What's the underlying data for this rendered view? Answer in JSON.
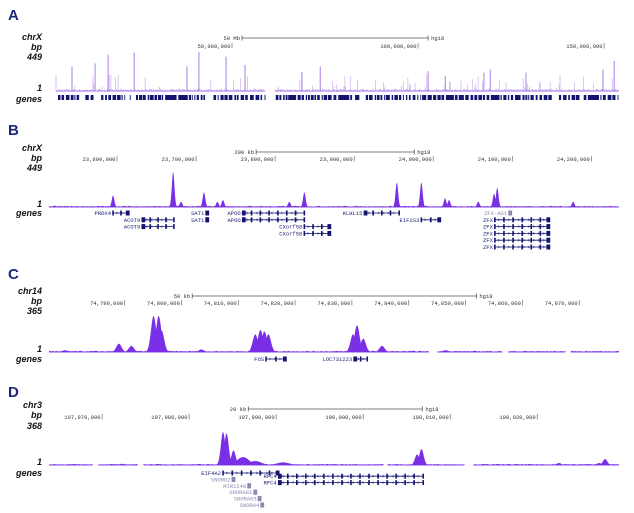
{
  "colors": {
    "signal": "#7a2ee6",
    "signal_light": "#b58be9",
    "baseline": "#9b6cf0",
    "genes": "#14146e",
    "panel_letter": "#1b2878"
  },
  "chart_data": [
    {
      "type": "area",
      "panel": "A",
      "chrom": "chrX",
      "unit": "bp",
      "ymax": "449",
      "ymin": "1",
      "ylim": [
        1,
        449
      ],
      "genes_label": "genes",
      "scale_label": "50 Mb",
      "assembly": "hg18",
      "scale_start": 52700000,
      "scale_span": 50000000,
      "xlim": [
        2700000,
        154000000
      ],
      "ticks": [
        {
          "value": 50000000,
          "label": "50,000,000"
        },
        {
          "value": 100000000,
          "label": "100,000,000"
        },
        {
          "value": 150000000,
          "label": "150,000,000"
        }
      ],
      "gaps": [
        [
          58900000,
          61600000
        ]
      ],
      "peaks": [
        {
          "pos": 7000000,
          "height": 283
        },
        {
          "pos": 13200000,
          "height": 319
        },
        {
          "pos": 16700000,
          "height": 418
        },
        {
          "pos": 23700000,
          "height": 440
        },
        {
          "pos": 37900000,
          "height": 283
        },
        {
          "pos": 41100000,
          "height": 449
        },
        {
          "pos": 48400000,
          "height": 395
        },
        {
          "pos": 53500000,
          "height": 301
        },
        {
          "pos": 68800000,
          "height": 220
        },
        {
          "pos": 73700000,
          "height": 283
        },
        {
          "pos": 102700000,
          "height": 229
        },
        {
          "pos": 107300000,
          "height": 171
        },
        {
          "pos": 117700000,
          "height": 211
        },
        {
          "pos": 119400000,
          "height": 247
        },
        {
          "pos": 129000000,
          "height": 211
        },
        {
          "pos": 149700000,
          "height": 247
        },
        {
          "pos": 152700000,
          "height": 346
        }
      ],
      "genes": []
    },
    {
      "type": "area",
      "panel": "B",
      "chrom": "chrX",
      "unit": "bp",
      "ymax": "449",
      "ymin": "1",
      "ylim": [
        1,
        449
      ],
      "genes_label": "genes",
      "scale_label": "200 kb",
      "assembly": "hg18",
      "scale_start": 23776000,
      "scale_span": 200000,
      "xlim": [
        23514000,
        24235000
      ],
      "ticks": [
        {
          "value": 23600000,
          "label": "23,600,000"
        },
        {
          "value": 23700000,
          "label": "23,700,000"
        },
        {
          "value": 23800000,
          "label": "23,800,000"
        },
        {
          "value": 23900000,
          "label": "23,900,000"
        },
        {
          "value": 24000000,
          "label": "24,000,000"
        },
        {
          "value": 24100000,
          "label": "24,100,000"
        },
        {
          "value": 24200000,
          "label": "24,200,000"
        }
      ],
      "gaps": [],
      "peaks": [
        {
          "pos": 23595000,
          "height": 148
        },
        {
          "pos": 23671000,
          "height": 449
        },
        {
          "pos": 23681000,
          "height": 67
        },
        {
          "pos": 23710000,
          "height": 189
        },
        {
          "pos": 23727000,
          "height": 67
        },
        {
          "pos": 23734000,
          "height": 90
        },
        {
          "pos": 23818000,
          "height": 67
        },
        {
          "pos": 23837000,
          "height": 189
        },
        {
          "pos": 23954000,
          "height": 314
        },
        {
          "pos": 23985000,
          "height": 314
        },
        {
          "pos": 24015000,
          "height": 112
        },
        {
          "pos": 24020000,
          "height": 90
        },
        {
          "pos": 24057000,
          "height": 67
        },
        {
          "pos": 24077000,
          "height": 170
        },
        {
          "pos": 24081000,
          "height": 247
        },
        {
          "pos": 24177000,
          "height": 67
        }
      ],
      "genes": [
        {
          "name": "PRDX4",
          "start": 23595000,
          "end": 23615000,
          "row": 0,
          "strand": "+"
        },
        {
          "name": "ACOT9",
          "start": 23632000,
          "end": 23672000,
          "row": 1,
          "strand": "-"
        },
        {
          "name": "ACOT9",
          "start": 23632000,
          "end": 23672000,
          "row": 2,
          "strand": "-"
        },
        {
          "name": "SAT1",
          "start": 23713000,
          "end": 23715500,
          "row": 0,
          "strand": "+"
        },
        {
          "name": "SAT1",
          "start": 23713000,
          "end": 23715500,
          "row": 1,
          "strand": "+"
        },
        {
          "name": "APOO",
          "start": 23759000,
          "end": 23837000,
          "row": 0,
          "strand": "-"
        },
        {
          "name": "APOO",
          "start": 23759000,
          "end": 23837000,
          "row": 1,
          "strand": "-"
        },
        {
          "name": "CXorf58",
          "start": 23837000,
          "end": 23870000,
          "row": 2,
          "strand": "+"
        },
        {
          "name": "CXorf58",
          "start": 23837000,
          "end": 23870000,
          "row": 3,
          "strand": "+"
        },
        {
          "name": "KLHL15",
          "start": 23913000,
          "end": 23957000,
          "row": 0,
          "strand": "-"
        },
        {
          "name": "EIF2S3",
          "start": 23985000,
          "end": 24009000,
          "row": 1,
          "strand": "+"
        },
        {
          "name": "ZFX-AS1",
          "start": 24096000,
          "end": 24098000,
          "row": 0,
          "strand": "-",
          "grey": true
        },
        {
          "name": "ZFX",
          "start": 24078000,
          "end": 24147000,
          "row": 1,
          "strand": "+"
        },
        {
          "name": "ZFX",
          "start": 24078000,
          "end": 24147000,
          "row": 2,
          "strand": "+"
        },
        {
          "name": "ZFX",
          "start": 24078000,
          "end": 24147000,
          "row": 3,
          "strand": "+"
        },
        {
          "name": "ZFX",
          "start": 24078000,
          "end": 24147000,
          "row": 4,
          "strand": "+"
        },
        {
          "name": "ZFX",
          "start": 24078000,
          "end": 24147000,
          "row": 5,
          "strand": "+"
        }
      ]
    },
    {
      "type": "area",
      "panel": "C",
      "chrom": "chr14",
      "unit": "bp",
      "ymax": "365",
      "ymin": "1",
      "ylim": [
        1,
        365
      ],
      "genes_label": "genes",
      "scale_label": "50 kb",
      "assembly": "hg18",
      "scale_start": 74801900,
      "scale_span": 50000,
      "xlim": [
        74776700,
        74877000
      ],
      "ticks": [
        {
          "value": 74790000,
          "label": "74,790,000"
        },
        {
          "value": 74800000,
          "label": "74,800,000"
        },
        {
          "value": 74810000,
          "label": "74,810,000"
        },
        {
          "value": 74820000,
          "label": "74,820,000"
        },
        {
          "value": 74830000,
          "label": "74,830,000"
        },
        {
          "value": 74840000,
          "label": "74,840,000"
        },
        {
          "value": 74850000,
          "label": "74,850,000"
        },
        {
          "value": 74860000,
          "label": "74,860,000"
        },
        {
          "value": 74870000,
          "label": "74,870,000"
        }
      ],
      "gaps": [
        [
          74843500,
          74845000
        ],
        [
          74856500,
          74857500
        ],
        [
          74867500,
          74868500
        ]
      ],
      "peaks": [
        {
          "pos": 74779500,
          "height": 18
        },
        {
          "pos": 74789000,
          "height": 84
        },
        {
          "pos": 74791200,
          "height": 62
        },
        {
          "pos": 74795100,
          "height": 365
        },
        {
          "pos": 74796000,
          "height": 365
        },
        {
          "pos": 74796500,
          "height": 219
        },
        {
          "pos": 74803500,
          "height": 26
        },
        {
          "pos": 74813000,
          "height": 179
        },
        {
          "pos": 74813900,
          "height": 223
        },
        {
          "pos": 74814600,
          "height": 208
        },
        {
          "pos": 74815300,
          "height": 179
        },
        {
          "pos": 74830200,
          "height": 179
        },
        {
          "pos": 74830900,
          "height": 270
        },
        {
          "pos": 74832000,
          "height": 135
        },
        {
          "pos": 74835300,
          "height": 62
        },
        {
          "pos": 74846500,
          "height": 18
        }
      ],
      "genes": [
        {
          "name": "FOS",
          "start": 74814900,
          "end": 74818400,
          "row": 0,
          "strand": "+"
        },
        {
          "name": "LOC731223",
          "start": 74830400,
          "end": 74832700,
          "row": 0,
          "strand": "-"
        }
      ]
    },
    {
      "type": "area",
      "panel": "D",
      "chrom": "chr3",
      "unit": "bp",
      "ymax": "368",
      "ymin": "1",
      "ylim": [
        1,
        368
      ],
      "genes_label": "genes",
      "scale_label": "20 kb",
      "assembly": "hg18",
      "scale_start": 107986800,
      "scale_span": 20000,
      "xlim": [
        107963900,
        108029400
      ],
      "ticks": [
        {
          "value": 107970000,
          "label": "107,970,000"
        },
        {
          "value": 107980000,
          "label": "107,980,000"
        },
        {
          "value": 107990000,
          "label": "107,990,000"
        },
        {
          "value": 108000000,
          "label": "108,000,000"
        },
        {
          "value": 108010000,
          "label": "108,010,000"
        },
        {
          "value": 108020000,
          "label": "108,020,000"
        }
      ],
      "gaps": [
        [
          107968900,
          107969600
        ],
        [
          107974100,
          107974800
        ],
        [
          108002300,
          108002800
        ],
        [
          108011600,
          108012700
        ]
      ],
      "peaks": [
        {
          "pos": 107983900,
          "height": 368
        },
        {
          "pos": 107984300,
          "height": 353
        },
        {
          "pos": 107985100,
          "height": 162
        },
        {
          "pos": 107986200,
          "height": 88
        },
        {
          "pos": 107987600,
          "height": 44
        },
        {
          "pos": 107990800,
          "height": 29
        },
        {
          "pos": 108006200,
          "height": 118
        },
        {
          "pos": 108006700,
          "height": 177
        },
        {
          "pos": 108022500,
          "height": 22
        },
        {
          "pos": 108027100,
          "height": 22
        },
        {
          "pos": 108027800,
          "height": 66
        }
      ],
      "genes": [
        {
          "name": "EIF4A2",
          "start": 107983900,
          "end": 107990300,
          "row": 0,
          "strand": "+"
        },
        {
          "name": "SNORD2",
          "start": 107985000,
          "end": 107985200,
          "row": 1,
          "strand": "+",
          "grey": true
        },
        {
          "name": "MIR1248",
          "start": 107986800,
          "end": 107987000,
          "row": 2,
          "strand": "+",
          "grey": true
        },
        {
          "name": "SNORA81",
          "start": 107987500,
          "end": 107987700,
          "row": 3,
          "strand": "+",
          "grey": true
        },
        {
          "name": "SNORA63",
          "start": 107988000,
          "end": 107988200,
          "row": 4,
          "strand": "+",
          "grey": true
        },
        {
          "name": "SNORA4",
          "start": 107988300,
          "end": 107988500,
          "row": 5,
          "strand": "+",
          "grey": true
        },
        {
          "name": "RFC4",
          "start": 107990300,
          "end": 108006900,
          "row": 0.5,
          "strand": "-"
        },
        {
          "name": "RFC4",
          "start": 107990300,
          "end": 108006900,
          "row": 1.5,
          "strand": "-"
        }
      ]
    }
  ]
}
